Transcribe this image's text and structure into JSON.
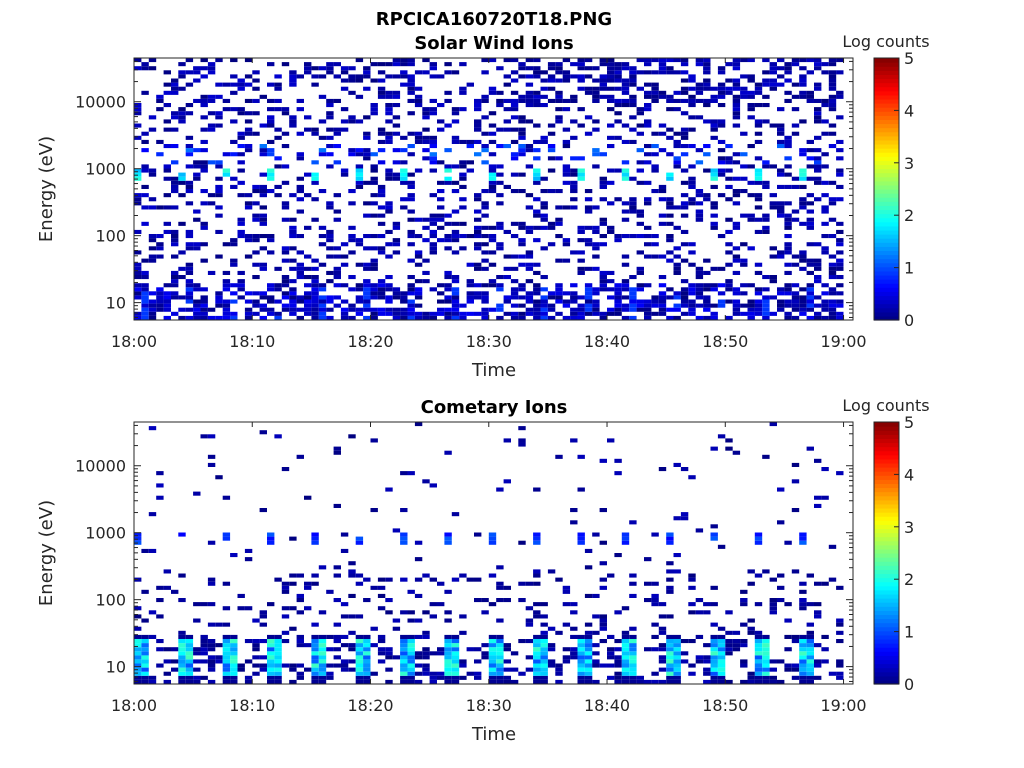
{
  "figure_title": "RPCICA160720T18.PNG",
  "colormap": [
    "#00007f",
    "#0000ff",
    "#007fff",
    "#00ffff",
    "#7fff7f",
    "#ffff00",
    "#ff7f00",
    "#ff0000",
    "#7f0000"
  ],
  "chart_data": [
    {
      "type": "heatmap",
      "title": "Solar Wind Ions",
      "xlabel": "Time",
      "ylabel": "Energy (eV)",
      "colorbar_label": "Log counts",
      "colorbar_ticks": [
        "0",
        "1",
        "2",
        "3",
        "4",
        "5"
      ],
      "clim": [
        0,
        5
      ],
      "xticks": [
        "18:00",
        "18:10",
        "18:20",
        "18:30",
        "18:40",
        "18:50",
        "19:00"
      ],
      "xlim_minutes": [
        0,
        60.8
      ],
      "yscale": "log",
      "ylim": [
        5.5,
        45000
      ],
      "yticks": [
        "10",
        "100",
        "1000",
        "10000"
      ],
      "grid": false,
      "features": [
        {
          "energy_eV": 10,
          "time_range": [
            "18:00",
            "19:00"
          ],
          "log_counts": [
            0,
            1
          ],
          "note": "dense low-energy band"
        },
        {
          "energy_eV": 800,
          "time_range": [
            "18:00",
            "19:00"
          ],
          "log_counts": [
            1.5,
            2.2
          ],
          "note": "periodic peaks"
        },
        {
          "energy_eV": [
            30,
            45000
          ],
          "time_range": [
            "18:00",
            "19:00"
          ],
          "log_counts": [
            0,
            1
          ],
          "note": "scattered background"
        }
      ]
    },
    {
      "type": "heatmap",
      "title": "Cometary Ions",
      "xlabel": "Time",
      "ylabel": "Energy (eV)",
      "colorbar_label": "Log counts",
      "colorbar_ticks": [
        "0",
        "1",
        "2",
        "3",
        "4",
        "5"
      ],
      "clim": [
        0,
        5
      ],
      "xticks": [
        "18:00",
        "18:10",
        "18:20",
        "18:30",
        "18:40",
        "18:50",
        "19:00"
      ],
      "xlim_minutes": [
        0,
        60.8
      ],
      "yscale": "log",
      "ylim": [
        5.5,
        45000
      ],
      "yticks": [
        "10",
        "100",
        "1000",
        "10000"
      ],
      "grid": false,
      "features": [
        {
          "energy_eV": [
            7,
            25
          ],
          "time_range": [
            "18:00",
            "19:00"
          ],
          "log_counts": [
            0,
            2.2
          ],
          "note": "periodic bright columns"
        },
        {
          "energy_eV": 800,
          "time_range": [
            "18:00",
            "19:00"
          ],
          "log_counts": [
            0.5,
            1.2
          ],
          "note": "periodic peaks"
        },
        {
          "energy_eV": [
            40,
            45000
          ],
          "time_range": [
            "18:00",
            "19:00"
          ],
          "log_counts": [
            0,
            0.6
          ],
          "note": "sparse background"
        }
      ]
    }
  ]
}
